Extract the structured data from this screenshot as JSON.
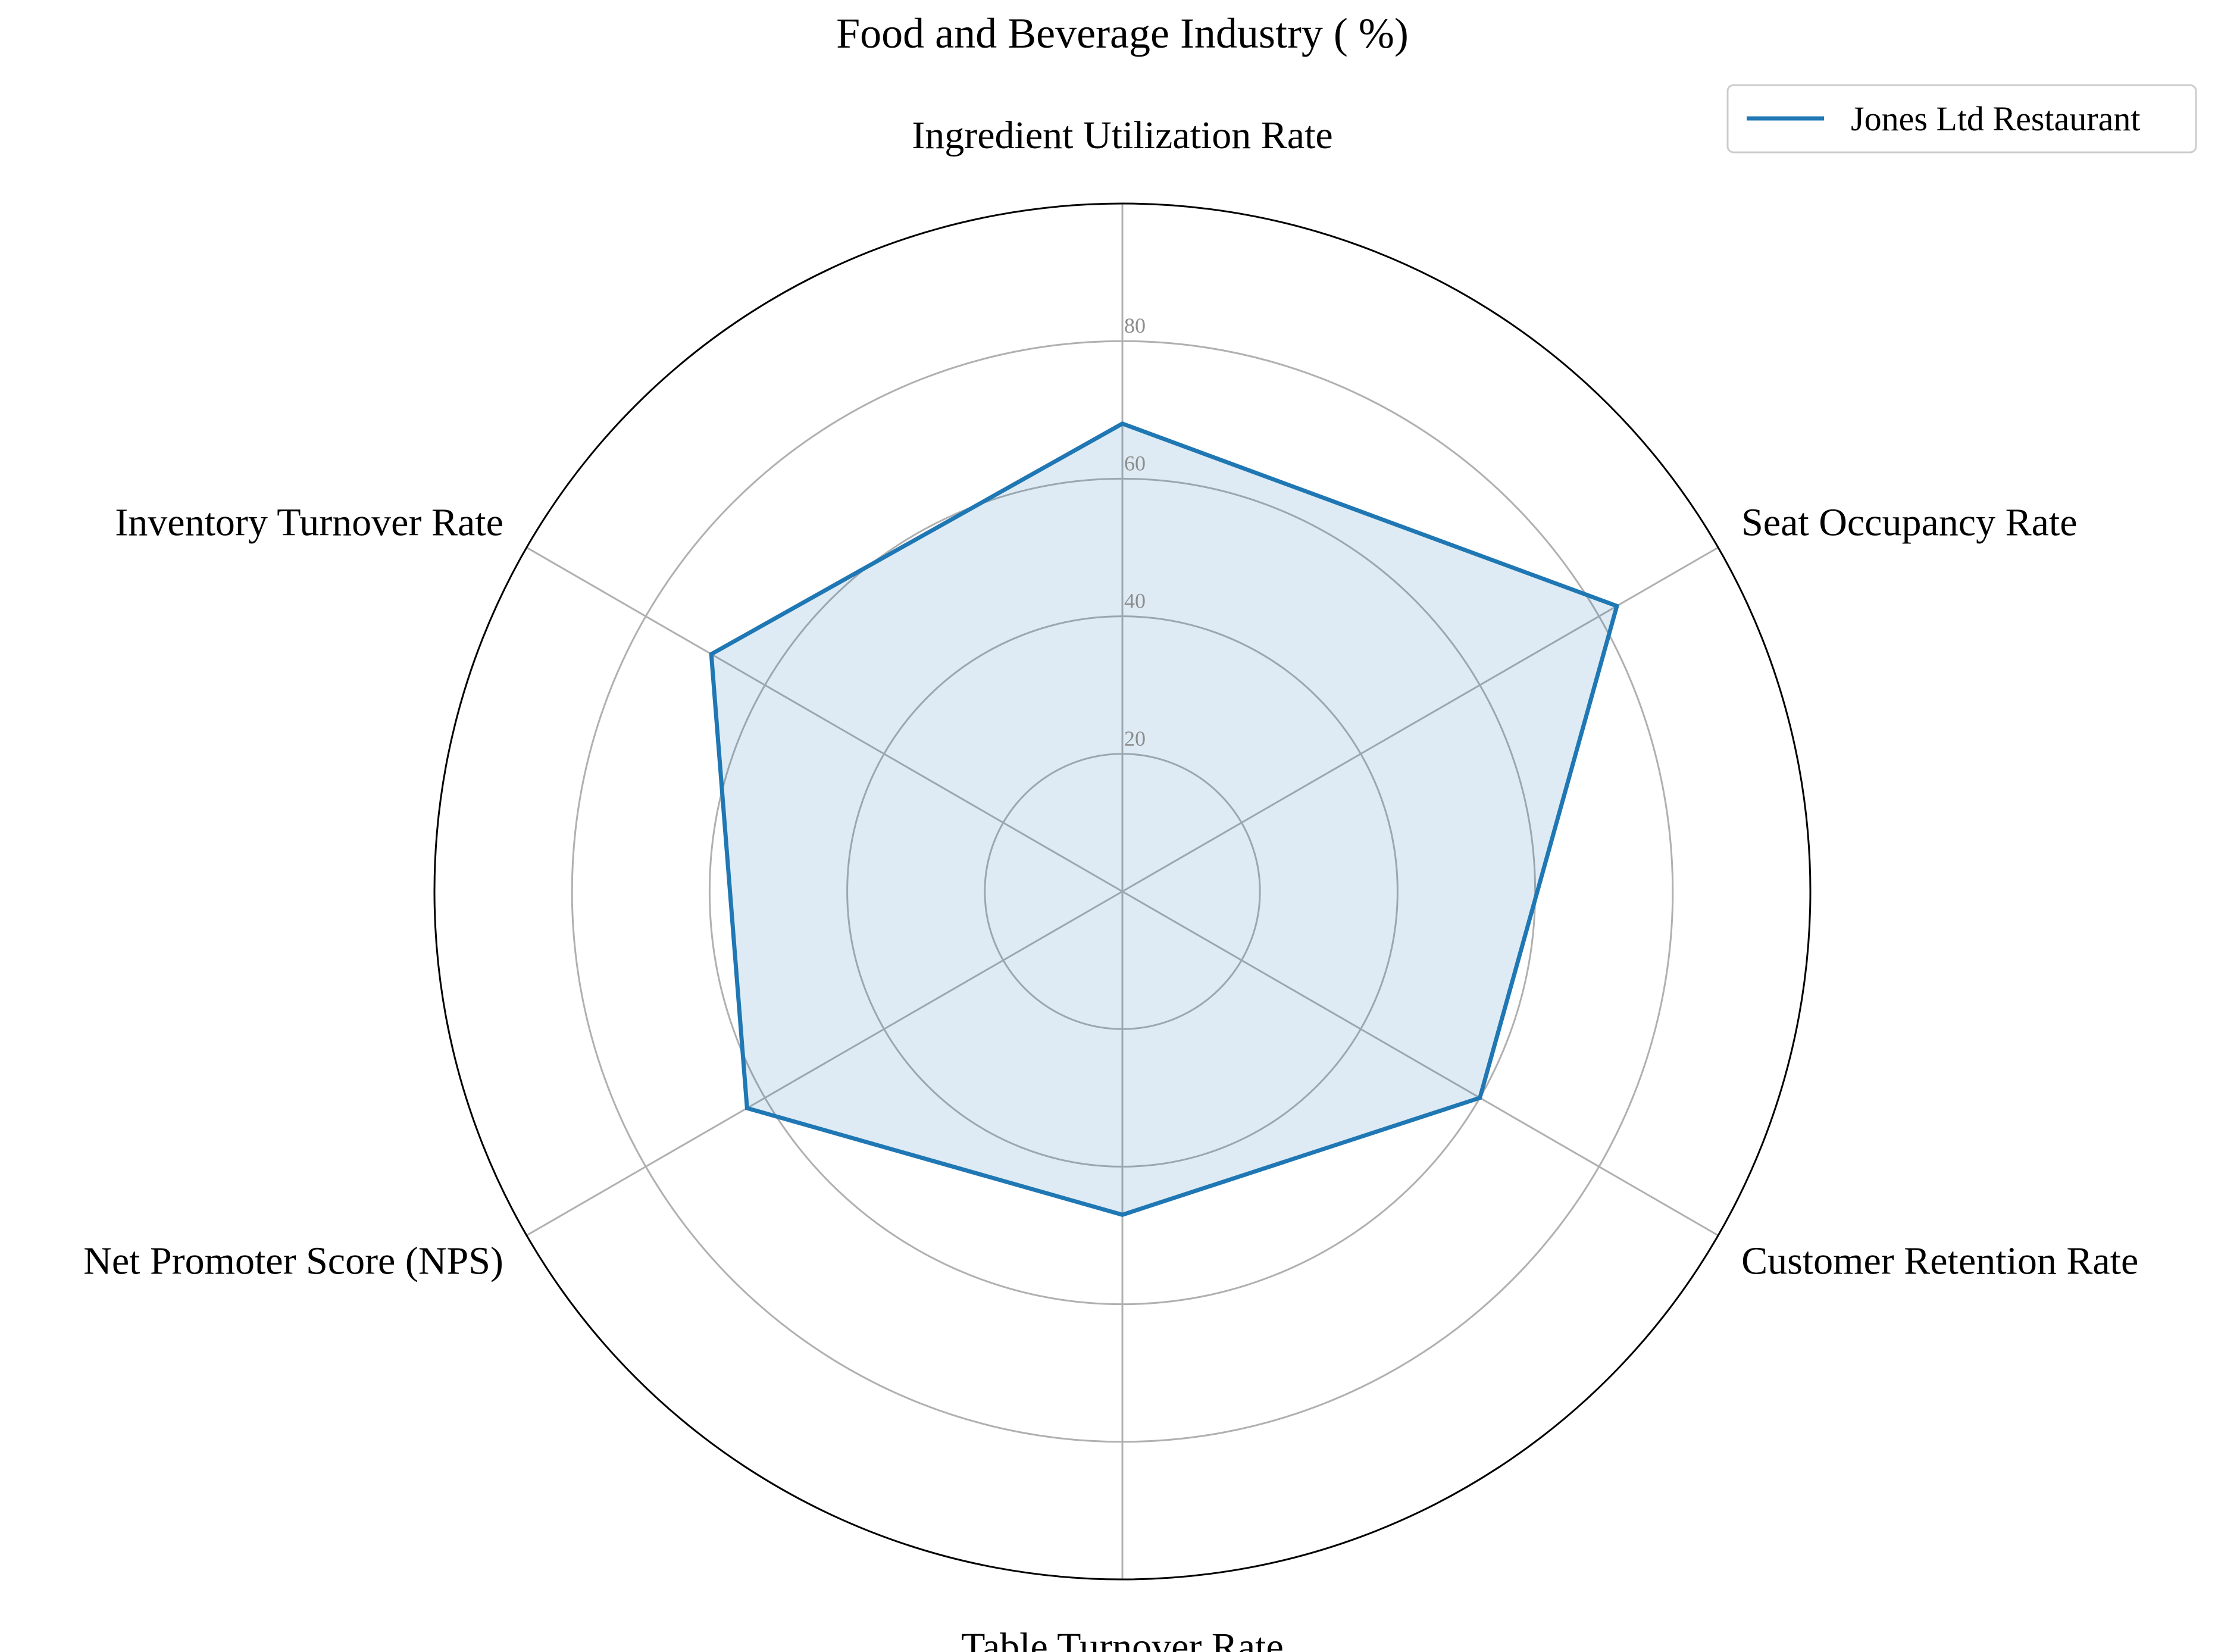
{
  "chart_data": {
    "type": "radar",
    "title": "Food and Beverage Industry ( %)",
    "categories": [
      "Ingredient Utilization Rate",
      "Seat Occupancy Rate",
      "Customer Retention Rate",
      "Table Turnover Rate",
      "Net Promoter Score (NPS)",
      "Inventory Turnover Rate"
    ],
    "series": [
      {
        "name": "Jones Ltd Restaurant",
        "values": [
          68,
          83,
          60,
          47,
          63,
          69
        ],
        "color": "#1f77b4",
        "fill_color": "#1f77b4"
      }
    ],
    "rlim": [
      0,
      100
    ],
    "rticks": [
      20,
      40,
      60,
      80
    ],
    "rtick_labels": [
      "20",
      "40",
      "60",
      "80"
    ],
    "grid": true,
    "grid_color": "#b0b0b0",
    "legend_position": "top-right"
  }
}
